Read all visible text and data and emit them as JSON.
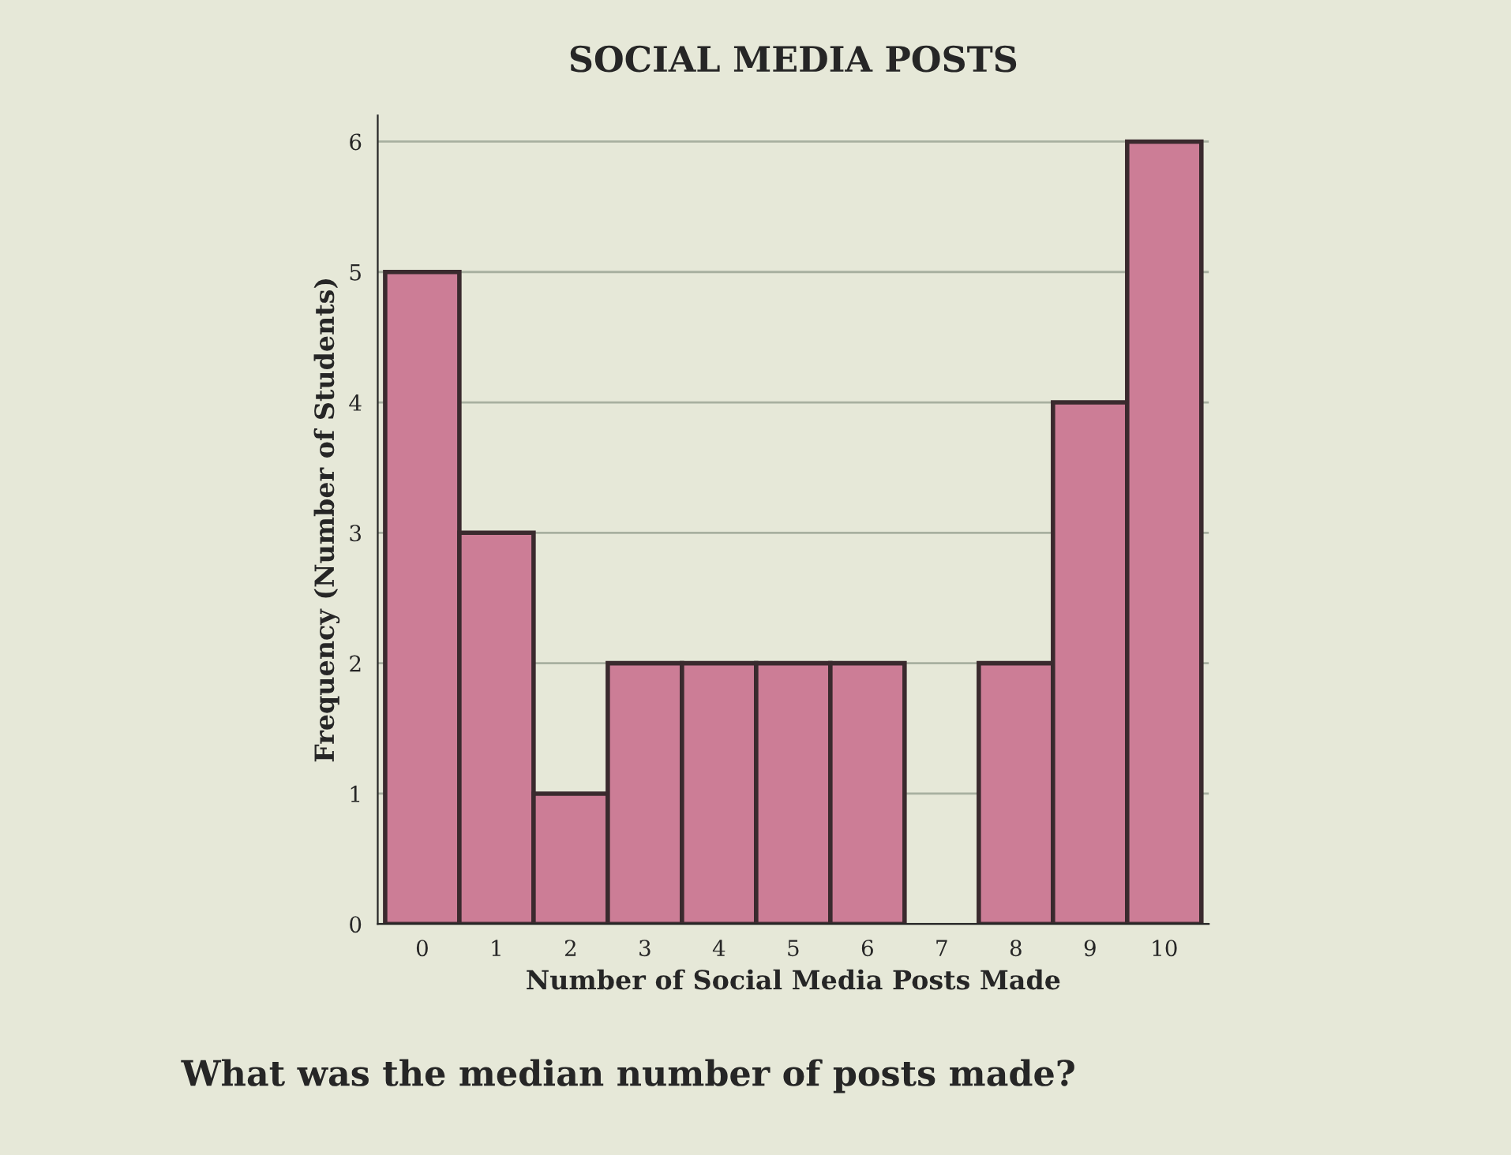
{
  "chart_data": {
    "type": "bar",
    "title": "SOCIAL MEDIA POSTS",
    "xlabel": "Number of Social Media Posts Made",
    "ylabel": "Frequency (Number of Students)",
    "categories": [
      "0",
      "1",
      "2",
      "3",
      "4",
      "5",
      "6",
      "7",
      "8",
      "9",
      "10"
    ],
    "values": [
      5,
      3,
      1,
      2,
      2,
      2,
      2,
      0,
      2,
      4,
      6
    ],
    "color": "#cc7d96",
    "ylim": [
      0,
      6.2
    ],
    "yticks": [
      0,
      1,
      2,
      3,
      4,
      5,
      6
    ],
    "grid": "y",
    "annotations": [
      "What was the median number of posts made?"
    ]
  }
}
